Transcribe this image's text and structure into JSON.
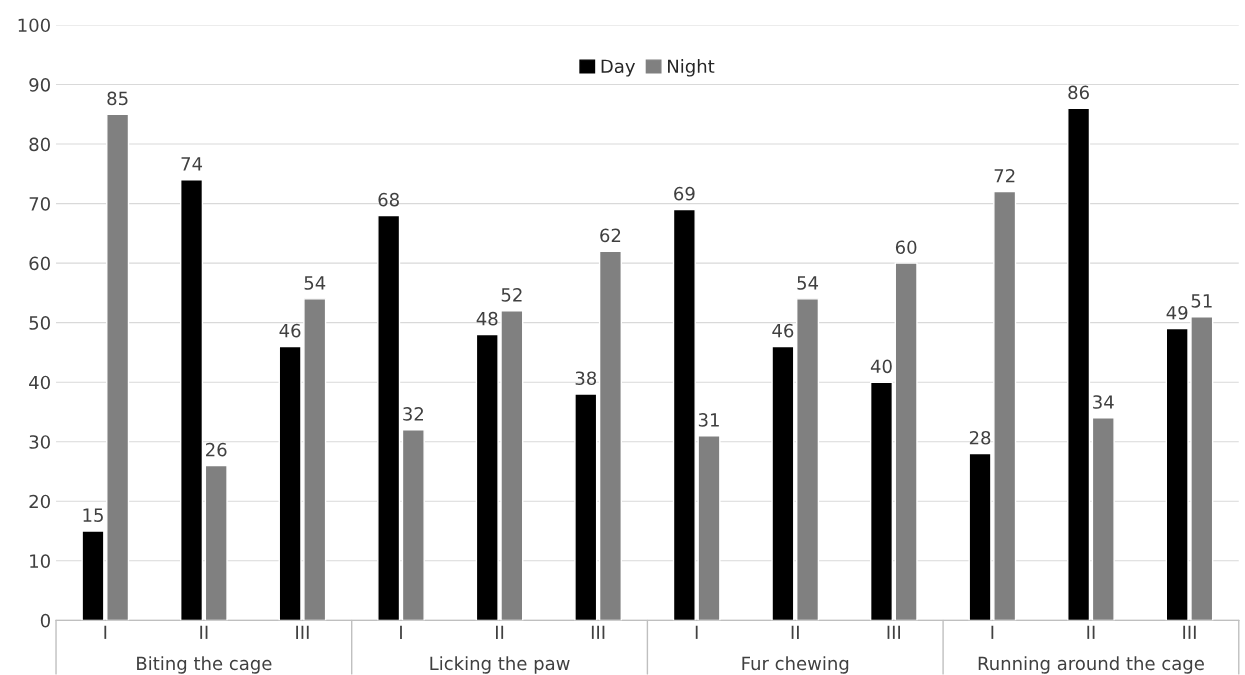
{
  "chart_data": {
    "type": "bar",
    "categories": [
      "I",
      "II",
      "III",
      "I",
      "II",
      "III",
      "I",
      "II",
      "III",
      "I",
      "II",
      "III"
    ],
    "series": [
      {
        "name": "Day",
        "color": "#000000",
        "values": [
          15,
          74,
          46,
          68,
          48,
          38,
          69,
          46,
          40,
          28,
          86,
          49
        ]
      },
      {
        "name": "Night",
        "color": "#808080",
        "values": [
          85,
          26,
          54,
          32,
          52,
          62,
          31,
          54,
          60,
          72,
          34,
          51
        ]
      }
    ],
    "annotations": [
      "Biting the cage",
      "Licking the paw",
      "Fur chewing",
      "Running around the cage"
    ],
    "ylim": [
      0,
      100
    ],
    "yticks": [
      0,
      10,
      20,
      30,
      40,
      50,
      60,
      70,
      80,
      90,
      100
    ],
    "grid": "y",
    "legend": "top",
    "data_labels": true
  }
}
